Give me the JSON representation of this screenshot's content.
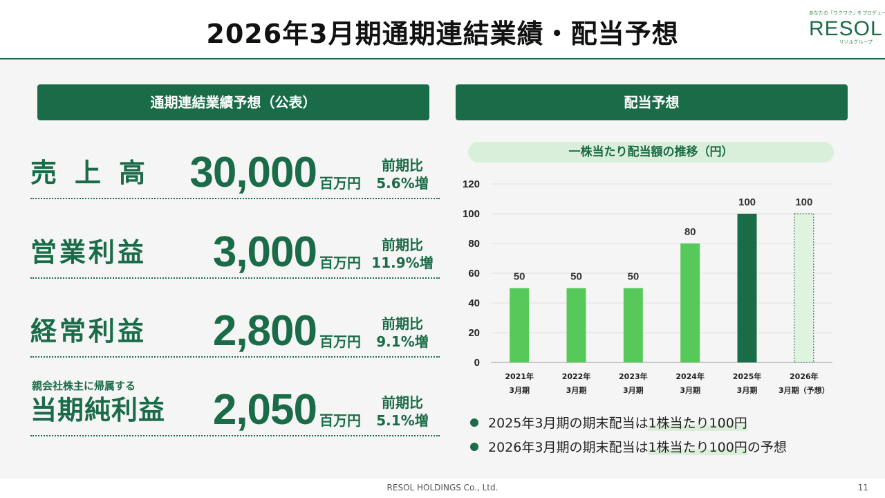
{
  "title": "2026年3月期通期連結業績・配当予想",
  "logo": {
    "tagline": "あなたの「ワクワク」をプロデュース",
    "name": "RESOL",
    "sub": "リソルグループ"
  },
  "left_panel": {
    "heading": "通期連結業績予想（公表）",
    "rows": [
      {
        "label": "売上高",
        "label_small": "",
        "value": "30,000",
        "unit": "百万円",
        "cmp_label": "前期比",
        "cmp_value": "5.6%増"
      },
      {
        "label": "営業利益",
        "label_small": "",
        "value": "3,000",
        "unit": "百万円",
        "cmp_label": "前期比",
        "cmp_value": "11.9%増"
      },
      {
        "label": "経常利益",
        "label_small": "",
        "value": "2,800",
        "unit": "百万円",
        "cmp_label": "前期比",
        "cmp_value": "9.1%増"
      },
      {
        "label": "当期純利益",
        "label_small": "親会社株主に帰属する",
        "value": "2,050",
        "unit": "百万円",
        "cmp_label": "前期比",
        "cmp_value": "5.1%増"
      }
    ]
  },
  "right_panel": {
    "heading": "配当予想",
    "chart_subtitle": "一株当たり配当額の推移（円）",
    "bullets": [
      {
        "pre": "2025年3月期の期末配当は",
        "highlight": "1株当たり100円",
        "post": ""
      },
      {
        "pre": "2026年3月期の期末配当は",
        "highlight": "1株当たり100円",
        "post": "の予想"
      }
    ]
  },
  "chart_data": {
    "type": "bar",
    "categories": [
      [
        "2021年",
        "3月期"
      ],
      [
        "2022年",
        "3月期"
      ],
      [
        "2023年",
        "3月期"
      ],
      [
        "2024年",
        "3月期"
      ],
      [
        "2025年",
        "3月期"
      ],
      [
        "2026年",
        "3月期（予想）"
      ]
    ],
    "values": [
      50,
      50,
      50,
      80,
      100,
      100
    ],
    "data_labels": [
      "50",
      "50",
      "50",
      "80",
      "100",
      "100"
    ],
    "yticks": [
      "0",
      "20",
      "40",
      "60",
      "80",
      "100",
      "120"
    ],
    "ylim": [
      0,
      120
    ],
    "grid": true,
    "colors": {
      "bar": "#57c95a",
      "highlight": "#1a6b47",
      "forecast_fill": "#dff3df",
      "forecast_border": "#1a6b47"
    },
    "bar_styles": [
      "normal",
      "normal",
      "normal",
      "normal",
      "highlight",
      "forecast"
    ]
  },
  "footer": {
    "company": "RESOL HOLDINGS Co., Ltd.",
    "page": "11"
  }
}
